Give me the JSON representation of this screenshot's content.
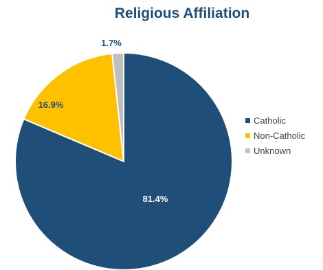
{
  "chart_data": {
    "type": "pie",
    "title": "Religious Affiliation",
    "categories": [
      "Catholic",
      "Non-Catholic",
      "Unknown"
    ],
    "values": [
      81.4,
      16.9,
      1.7
    ],
    "data_labels": [
      "81.4%",
      "16.9%",
      "1.7%"
    ],
    "colors": [
      "#1f4e79",
      "#ffc000",
      "#bfbfbf"
    ],
    "label_colors": [
      "#ffffff",
      "#1f4e79",
      "#1f4e79"
    ],
    "title_color": "#1f4e79",
    "start_angle_deg": 0,
    "direction": "clockwise",
    "legend_position": "right"
  }
}
